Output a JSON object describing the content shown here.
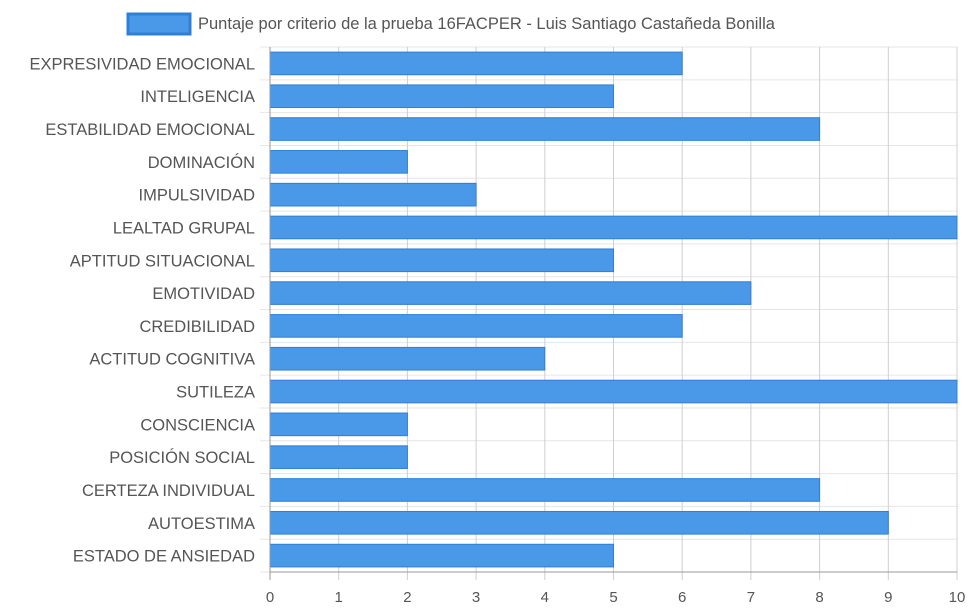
{
  "chart_data": {
    "type": "bar",
    "orientation": "horizontal",
    "categories": [
      "EXPRESIVIDAD EMOCIONAL",
      "INTELIGENCIA",
      "ESTABILIDAD EMOCIONAL",
      "DOMINACIÓN",
      "IMPULSIVIDAD",
      "LEALTAD GRUPAL",
      "APTITUD SITUACIONAL",
      "EMOTIVIDAD",
      "CREDIBILIDAD",
      "ACTITUD COGNITIVA",
      "SUTILEZA",
      "CONSCIENCIA",
      "POSICIÓN SOCIAL",
      "CERTEZA INDIVIDUAL",
      "AUTOESTIMA",
      "ESTADO DE ANSIEDAD"
    ],
    "series": [
      {
        "name": "Puntaje por criterio de la prueba 16FACPER - Luis Santiago Castañeda Bonilla",
        "values": [
          6,
          5,
          8,
          2,
          3,
          10,
          5,
          7,
          6,
          4,
          10,
          2,
          2,
          8,
          9,
          5
        ]
      }
    ],
    "xlim": [
      0,
      10
    ],
    "x_ticks": [
      "0",
      "1",
      "2",
      "3",
      "4",
      "5",
      "6",
      "7",
      "8",
      "9",
      "10"
    ],
    "grid": true,
    "legend_position": "top-center",
    "colors": {
      "bar_fill": "#4a98e8",
      "bar_stroke": "#2e7fd6",
      "grid": "#e6e6e6",
      "axis": "#999999",
      "text": "#555555"
    }
  }
}
